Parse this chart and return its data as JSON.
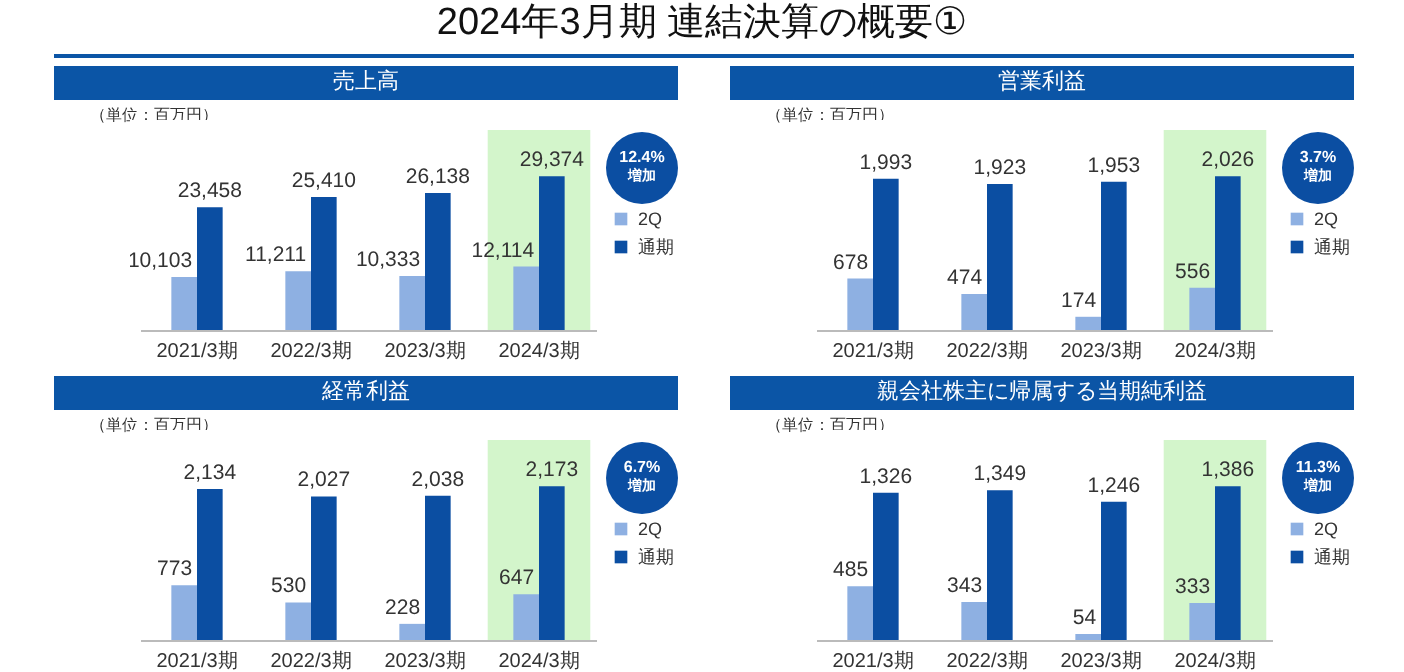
{
  "chart_data": [
    {
      "type": "other",
      "title": "2024年3月期  連結決算の概要①"
    },
    {
      "type": "bar",
      "title": "売上高",
      "subtitle": "（単位：百万円）",
      "categories": [
        "2021/3期",
        "2022/3期",
        "2023/3期",
        "2024/3期"
      ],
      "series": [
        {
          "name": "2Q",
          "color": "#8eb0e2",
          "values": [
            10103,
            11211,
            10333,
            12114
          ],
          "value_labels": [
            "10,103",
            "11,211",
            "10,333",
            "12,114"
          ]
        },
        {
          "name": "通期",
          "color": "#0b4ea2",
          "values": [
            23458,
            25410,
            26138,
            29374
          ],
          "value_labels": [
            "23,458",
            "25,410",
            "26,138",
            "29,374"
          ]
        }
      ],
      "legend": "right",
      "annotations": [
        "12.4%\n増加"
      ],
      "bands": [
        {
          "axis": "x",
          "from": "2024/3期",
          "to": "2024/3期",
          "color": "#d3f5cb"
        }
      ]
    },
    {
      "type": "bar",
      "title": "営業利益",
      "subtitle": "（単位：百万円）",
      "categories": [
        "2021/3期",
        "2022/3期",
        "2023/3期",
        "2024/3期"
      ],
      "series": [
        {
          "name": "2Q",
          "color": "#8eb0e2",
          "values": [
            678,
            474,
            174,
            556
          ],
          "value_labels": [
            "678",
            "474",
            "174",
            "556"
          ]
        },
        {
          "name": "通期",
          "color": "#0b4ea2",
          "values": [
            1993,
            1923,
            1953,
            2026
          ],
          "value_labels": [
            "1,993",
            "1,923",
            "1,953",
            "2,026"
          ]
        }
      ],
      "legend": "right",
      "annotations": [
        "3.7%\n増加"
      ],
      "bands": [
        {
          "axis": "x",
          "from": "2024/3期",
          "to": "2024/3期",
          "color": "#d3f5cb"
        }
      ]
    },
    {
      "type": "bar",
      "title": "経常利益",
      "subtitle": "（単位：百万円）",
      "categories": [
        "2021/3期",
        "2022/3期",
        "2023/3期",
        "2024/3期"
      ],
      "series": [
        {
          "name": "2Q",
          "color": "#8eb0e2",
          "values": [
            773,
            530,
            228,
            647
          ],
          "value_labels": [
            "773",
            "530",
            "228",
            "647"
          ]
        },
        {
          "name": "通期",
          "color": "#0b4ea2",
          "values": [
            2134,
            2027,
            2038,
            2173
          ],
          "value_labels": [
            "2,134",
            "2,027",
            "2,038",
            "2,173"
          ]
        }
      ],
      "legend": "right",
      "annotations": [
        "6.7%\n増加"
      ],
      "bands": [
        {
          "axis": "x",
          "from": "2024/3期",
          "to": "2024/3期",
          "color": "#d3f5cb"
        }
      ]
    },
    {
      "type": "bar",
      "title": "親会社株主に帰属する当期純利益",
      "subtitle": "（単位：百万円）",
      "categories": [
        "2021/3期",
        "2022/3期",
        "2023/3期",
        "2024/3期"
      ],
      "series": [
        {
          "name": "2Q",
          "color": "#8eb0e2",
          "values": [
            485,
            343,
            54,
            333
          ],
          "value_labels": [
            "485",
            "343",
            "54",
            "333"
          ]
        },
        {
          "name": "通期",
          "color": "#0b4ea2",
          "values": [
            1326,
            1349,
            1246,
            1386
          ],
          "value_labels": [
            "1,326",
            "1,349",
            "1,246",
            "1,386"
          ]
        }
      ],
      "legend": "right",
      "annotations": [
        "11.3%\n増加"
      ],
      "bands": [
        {
          "axis": "x",
          "from": "2024/3期",
          "to": "2024/3期",
          "color": "#d3f5cb"
        }
      ]
    }
  ]
}
